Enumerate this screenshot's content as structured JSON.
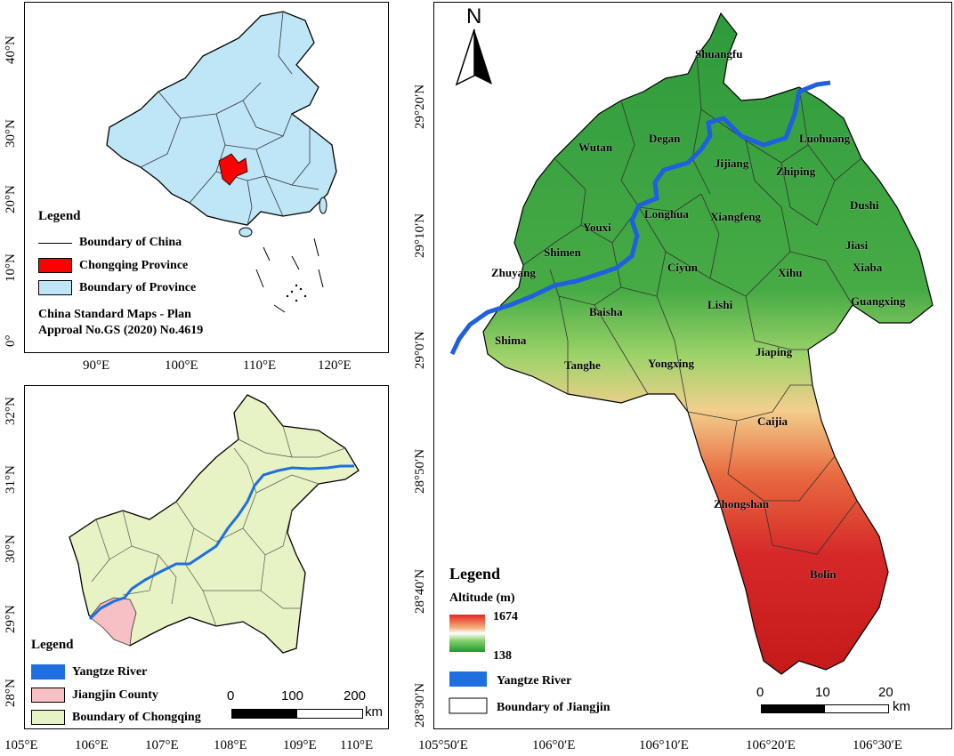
{
  "china_panel": {
    "lat_labels": [
      "40°N",
      "30°N",
      "20°N",
      "10°N",
      "0°"
    ],
    "lon_labels": [
      "90°E",
      "100°E",
      "110°E",
      "120°E"
    ],
    "legend_title": "Legend",
    "legend_items": [
      {
        "label": "Boundary of China",
        "symbol": "line",
        "color": "#000000"
      },
      {
        "label": "Chongqing Province",
        "symbol": "fill",
        "color": "#ff0000"
      },
      {
        "label": "Boundary of Province",
        "symbol": "fill",
        "color": "#bfe6f7"
      }
    ],
    "note_line1": "China Standard Maps - Plan",
    "note_line2": "Approal No.GS (2020) No.4619"
  },
  "chongqing_panel": {
    "lat_labels": [
      "32°N",
      "31°N",
      "30°N",
      "29°N",
      "28°N"
    ],
    "lon_labels": [
      "105°E",
      "106°E",
      "107°E",
      "108°E",
      "109°E",
      "110°E"
    ],
    "legend_title": "Legend",
    "legend_items": [
      {
        "label": "Yangtze River",
        "symbol": "fill",
        "color": "#1f6fe0"
      },
      {
        "label": "Jiangjin County",
        "symbol": "fill",
        "color": "#f6c0c4"
      },
      {
        "label": "Boundary of Chongqing",
        "symbol": "fill",
        "color": "#e7f3c4"
      }
    ],
    "scale": {
      "ticks": [
        "0",
        "100",
        "200"
      ],
      "unit": "km"
    }
  },
  "jiangjin_panel": {
    "north_label": "N",
    "lat_labels": [
      "29°20′N",
      "29°10′N",
      "29°0′N",
      "28°50′N",
      "28°40′N",
      "28°30′N"
    ],
    "lon_labels": [
      "105°50′E",
      "106°0′E",
      "106°10′E",
      "106°20′E",
      "106°30′E"
    ],
    "towns": [
      "Shuangfu",
      "Wutan",
      "Degan",
      "Luohuang",
      "Jijiang",
      "Zhiping",
      "Dushi",
      "Youxi",
      "Longhua",
      "Xiangfeng",
      "Shimen",
      "Jiasi",
      "Zhuyang",
      "Ciyun",
      "Xihu",
      "Xiaba",
      "Guangxing",
      "Lishi",
      "Baisha",
      "Shima",
      "Jiaping",
      "Tanghe",
      "Yongxing",
      "Caijia",
      "Zhongshan",
      "Bolin"
    ],
    "legend_title": "Legend",
    "altitude_title": "Altitude (m)",
    "altitude_max": "1674",
    "altitude_min": "138",
    "legend_items": [
      {
        "label": "Yangtze River",
        "symbol": "fill",
        "color": "#1f6fe0"
      },
      {
        "label": "Boundary of Jiangjin",
        "symbol": "outline",
        "color": "#ffffff"
      }
    ],
    "scale": {
      "ticks": [
        "0",
        "10",
        "20"
      ],
      "unit": "km"
    }
  }
}
